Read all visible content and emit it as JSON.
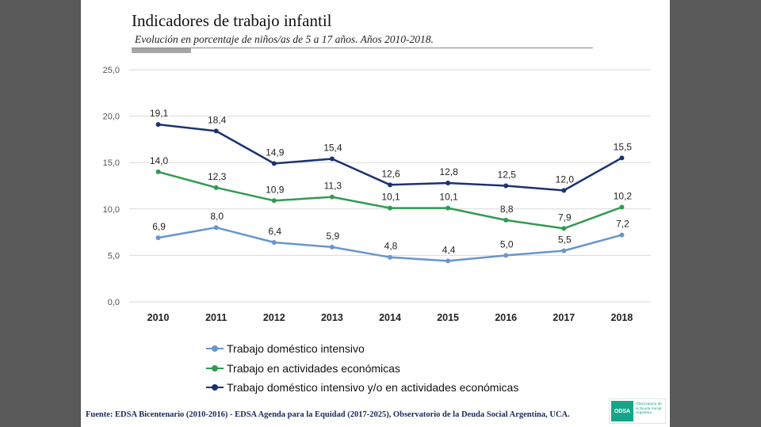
{
  "slide": {
    "title": "Indicadores de trabajo infantil",
    "subtitle": "Evolución en porcentaje de niños/as de 5 a 17 años. Años  2010-2018.",
    "footer": "Fuente: EDSA Bicentenario (2010-2016) - EDSA Agenda para la Equidad (2017-2025), Observatorio de la Deuda Social Argentina, UCA.",
    "logo": {
      "mark": "ODSA",
      "text": "Observatorio de la Deuda Social Argentina",
      "color": "#17a589"
    }
  },
  "chart_data": {
    "type": "line",
    "title": "Indicadores de trabajo infantil",
    "subtitle": "Evolución en porcentaje de niños/as de 5 a 17 años. Años  2010-2018.",
    "xlabel": "",
    "ylabel": "",
    "ylim": [
      0,
      25
    ],
    "yticks": [
      "0,0",
      "5,0",
      "10,0",
      "15,0",
      "20,0",
      "25,0"
    ],
    "categories": [
      "2010",
      "2011",
      "2012",
      "2013",
      "2014",
      "2015",
      "2016",
      "2017",
      "2018"
    ],
    "grid": true,
    "legend_position": "bottom",
    "series": [
      {
        "name": "Trabajo doméstico intensivo",
        "color": "#6a95cd",
        "values": [
          6.9,
          8.0,
          6.4,
          5.9,
          4.8,
          4.4,
          5.0,
          5.5,
          7.2
        ],
        "labels": [
          "6,9",
          "8,0",
          "6,4",
          "5,9",
          "4,8",
          "4,4",
          "5,0",
          "5,5",
          "7,2"
        ]
      },
      {
        "name": "Trabajo en actividades económicas",
        "color": "#339a52",
        "values": [
          14.0,
          12.3,
          10.9,
          11.3,
          10.1,
          10.1,
          8.8,
          7.9,
          10.2
        ],
        "labels": [
          "14,0",
          "12,3",
          "10,9",
          "11,3",
          "10,1",
          "10,1",
          "8,8",
          "7,9",
          "10,2"
        ]
      },
      {
        "name": "Trabajo doméstico intensivo y/o en actividades económicas",
        "color": "#1c3370",
        "values": [
          19.1,
          18.4,
          14.9,
          15.4,
          12.6,
          12.8,
          12.5,
          12.0,
          15.5
        ],
        "labels": [
          "19,1",
          "18,4",
          "14,9",
          "15,4",
          "12,6",
          "12,8",
          "12,5",
          "12,0",
          "15,5"
        ]
      }
    ]
  }
}
